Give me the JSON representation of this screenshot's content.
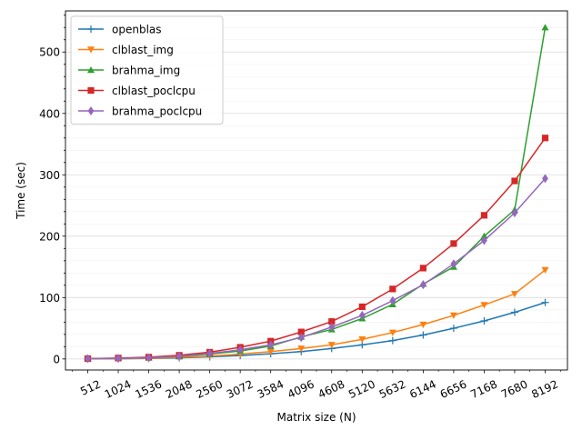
{
  "chart_data": {
    "type": "line",
    "title": "",
    "xlabel": "Matrix size (N)",
    "ylabel": "Time (sec)",
    "x": [
      512,
      1024,
      1536,
      2048,
      2560,
      3072,
      3584,
      4096,
      4608,
      5120,
      5632,
      6144,
      6656,
      7168,
      7680,
      8192
    ],
    "xticks": [
      "512",
      "1024",
      "1536",
      "2048",
      "2560",
      "3072",
      "3584",
      "4096",
      "4608",
      "5120",
      "5632",
      "6144",
      "6656",
      "7168",
      "7680",
      "8192"
    ],
    "yticks": [
      "0",
      "100",
      "200",
      "300",
      "400",
      "500"
    ],
    "ylim": [
      -18,
      567
    ],
    "grid": "horizontal",
    "legend_position": "top-left",
    "series": [
      {
        "name": "openblas",
        "color": "#1f77b4",
        "marker": "plus",
        "values": [
          0.1,
          0.3,
          0.8,
          1.8,
          3.5,
          5.5,
          8.5,
          12,
          17,
          23,
          30,
          39,
          50,
          62,
          76,
          92
        ]
      },
      {
        "name": "clblast_img",
        "color": "#ff7f0e",
        "marker": "triangle-down",
        "values": [
          0.2,
          0.5,
          1.2,
          2.5,
          4.5,
          8,
          12,
          17,
          23,
          32,
          43,
          56,
          71,
          88,
          106,
          145
        ]
      },
      {
        "name": "brahma_img",
        "color": "#2ca02c",
        "marker": "triangle-up",
        "values": [
          0.5,
          1,
          2,
          4,
          8,
          13,
          21,
          36,
          48,
          66,
          89,
          122,
          150,
          200,
          243,
          540
        ]
      },
      {
        "name": "clblast_poclcpu",
        "color": "#d62728",
        "marker": "square",
        "values": [
          0.5,
          1.5,
          3,
          6,
          11,
          19,
          29,
          44,
          61,
          85,
          114,
          148,
          188,
          234,
          290,
          360
        ]
      },
      {
        "name": "brahma_poclcpu",
        "color": "#9467bd",
        "marker": "diamond",
        "values": [
          0.5,
          1,
          2,
          4.5,
          9,
          15,
          23,
          35,
          52,
          71,
          95,
          121,
          155,
          193,
          238,
          294
        ]
      }
    ]
  }
}
